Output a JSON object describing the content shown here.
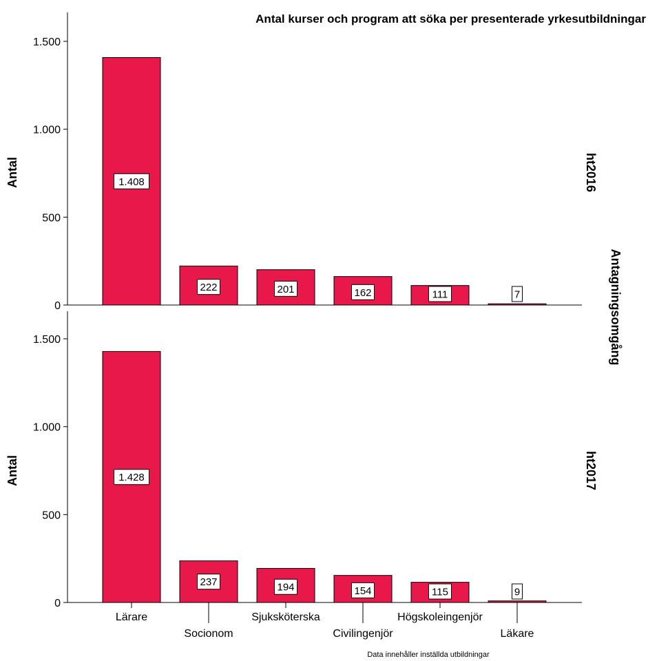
{
  "chart_data": {
    "type": "bar",
    "title": "Antal kurser och program att söka per presenterade yrkesutbildningar",
    "ylabel": "Antal",
    "panel_axis_label": "Antagningsomgång",
    "footnote": "Data innehåller inställda utbildningar",
    "categories": [
      "Lärare",
      "Socionom",
      "Sjuksköterska",
      "Civilingenjör",
      "Högskoleingenjör",
      "Läkare"
    ],
    "ylim": [
      0,
      1500
    ],
    "yticks": [
      0,
      500,
      1000,
      1500
    ],
    "ytick_labels": [
      "0",
      "500",
      "1.000",
      "1.500"
    ],
    "bar_color": "#e8184a",
    "panels": [
      {
        "name": "ht2016",
        "values": [
          1408,
          222,
          201,
          162,
          111,
          7
        ],
        "value_labels": [
          "1.408",
          "222",
          "201",
          "162",
          "111",
          "7"
        ]
      },
      {
        "name": "ht2017",
        "values": [
          1428,
          237,
          194,
          154,
          115,
          9
        ],
        "value_labels": [
          "1.428",
          "237",
          "194",
          "154",
          "115",
          "9"
        ]
      }
    ]
  }
}
